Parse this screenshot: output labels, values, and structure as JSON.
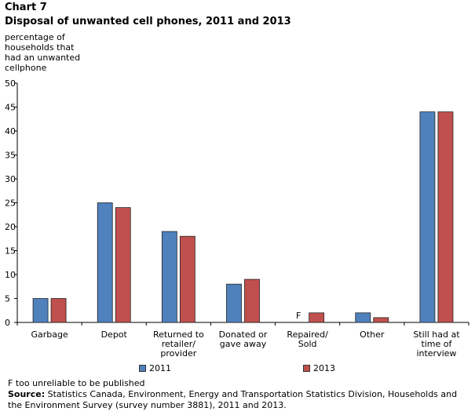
{
  "chart_number": "Chart 7",
  "footnote": "F too unreliable to be published",
  "source_label": "Source:",
  "source_text": "Statistics Canada, Environment, Energy and Transportation Statistics Division, Households and the Environment Survey (survey number 3881), 2011 and 2013.",
  "colors": {
    "series_2011": "#4f81bd",
    "series_2013": "#c0504d"
  },
  "chart_data": {
    "type": "bar",
    "title": "Disposal of unwanted cell phones, 2011 and 2013",
    "ylabel": "percentage of households that had an unwanted cellphone",
    "xlabel": "",
    "ylim": [
      0,
      50
    ],
    "yticks": [
      0,
      5,
      10,
      15,
      20,
      25,
      30,
      35,
      40,
      45,
      50
    ],
    "categories": [
      "Garbage",
      "Depot",
      "Returned to retailer/ provider",
      "Donated or gave away",
      "Repaired/ Sold",
      "Other",
      "Still had at time of interview"
    ],
    "category_lines": [
      [
        "Garbage"
      ],
      [
        "Depot"
      ],
      [
        "Returned to",
        "retailer/",
        "provider"
      ],
      [
        "Donated or",
        "gave away"
      ],
      [
        "Repaired/",
        "Sold"
      ],
      [
        "Other"
      ],
      [
        "Still had at",
        "time of",
        "interview"
      ]
    ],
    "series": [
      {
        "name": "2011",
        "values": [
          5,
          25,
          19,
          8,
          null,
          2,
          44
        ]
      },
      {
        "name": "2013",
        "values": [
          5,
          24,
          18,
          9,
          2,
          1,
          44
        ]
      }
    ],
    "annotations": [
      {
        "category": "Repaired/ Sold",
        "series": "2011",
        "text": "F"
      }
    ],
    "legend_position": "bottom",
    "grid": false
  }
}
